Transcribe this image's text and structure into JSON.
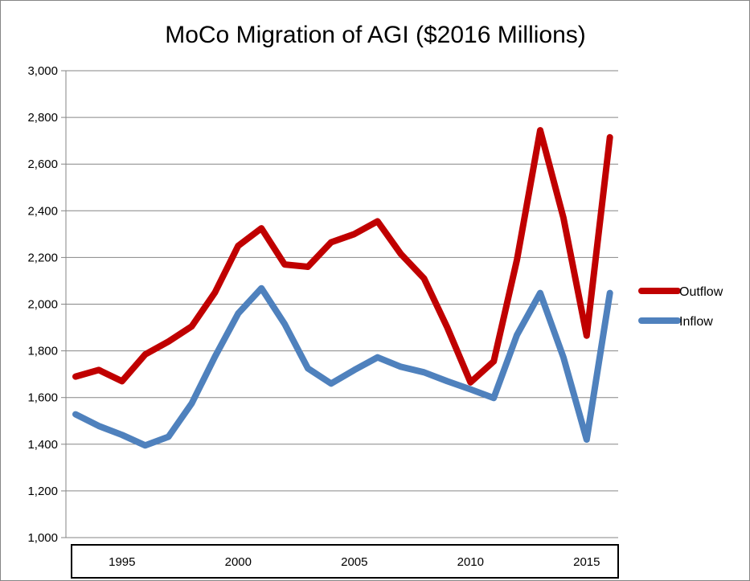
{
  "chart_data": {
    "type": "line",
    "title": "MoCo Migration of AGI ($2016 Millions)",
    "xlabel": "",
    "ylabel": "",
    "x": [
      1993,
      1994,
      1995,
      1996,
      1997,
      1998,
      1999,
      2000,
      2001,
      2002,
      2003,
      2004,
      2005,
      2006,
      2007,
      2008,
      2009,
      2010,
      2011,
      2012,
      2013,
      2014,
      2015,
      2016
    ],
    "x_ticks": [
      "1995",
      "2000",
      "2005",
      "2010",
      "2015"
    ],
    "ylim": [
      1000,
      3000
    ],
    "y_ticks": [
      "1,000",
      "1,200",
      "1,400",
      "1,600",
      "1,800",
      "2,000",
      "2,200",
      "2,400",
      "2,600",
      "2,800",
      "3,000"
    ],
    "grid": "horizontal",
    "legend": "right",
    "series": [
      {
        "name": "Outflow",
        "color": "#C00000",
        "values": [
          1690,
          1718,
          1670,
          1785,
          1840,
          1905,
          2050,
          2250,
          2325,
          2170,
          2160,
          2265,
          2300,
          2355,
          2215,
          2110,
          1900,
          1665,
          1755,
          2190,
          2745,
          2370,
          1865,
          2715
        ]
      },
      {
        "name": "Inflow",
        "color": "#4F81BD",
        "values": [
          1528,
          1478,
          1440,
          1395,
          1432,
          1575,
          1775,
          1960,
          2068,
          1915,
          1725,
          1660,
          1718,
          1772,
          1732,
          1708,
          1670,
          1635,
          1598,
          1868,
          2048,
          1772,
          1420,
          2048
        ]
      }
    ]
  }
}
